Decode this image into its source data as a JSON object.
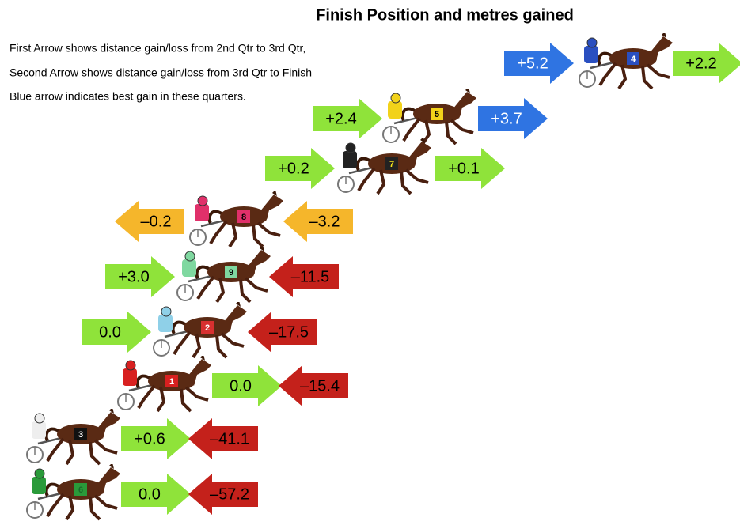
{
  "title": "Finish Position and metres gained",
  "notes": [
    "First Arrow shows distance gain/loss from 2nd Qtr to 3rd Qtr,",
    "Second Arrow shows distance gain/loss from 3rd Qtr to Finish",
    "Blue arrow indicates best gain in these quarters."
  ],
  "rows": [
    {
      "number": "4",
      "silks_color": "#2a4fc0",
      "cloth_color": "#2a4fc0",
      "number_color": "#ffffff",
      "arrows": [
        {
          "text": "+5.2",
          "direction": "right",
          "color": "#2f74e2",
          "text_color": "#ffffff"
        },
        {
          "text": "+2.2",
          "direction": "right",
          "color": "#8fe33a",
          "text_color": "#000000"
        }
      ]
    },
    {
      "number": "5",
      "silks_color": "#f2d21a",
      "cloth_color": "#f2d21a",
      "number_color": "#000000",
      "arrows": [
        {
          "text": "+2.4",
          "direction": "right",
          "color": "#8fe33a",
          "text_color": "#000000"
        },
        {
          "text": "+3.7",
          "direction": "right",
          "color": "#2f74e2",
          "text_color": "#ffffff"
        }
      ]
    },
    {
      "number": "7",
      "silks_color": "#222222",
      "cloth_color": "#222222",
      "number_color": "#f2e21a",
      "arrows": [
        {
          "text": "+0.2",
          "direction": "right",
          "color": "#8fe33a",
          "text_color": "#000000"
        },
        {
          "text": "+0.1",
          "direction": "right",
          "color": "#8fe33a",
          "text_color": "#000000"
        }
      ]
    },
    {
      "number": "8",
      "silks_color": "#e0306a",
      "cloth_color": "#e0306a",
      "number_color": "#000000",
      "arrows": [
        {
          "text": "–0.2",
          "direction": "left",
          "color": "#f5b62b",
          "text_color": "#000000"
        },
        {
          "text": "–3.2",
          "direction": "left",
          "color": "#f5b62b",
          "text_color": "#000000"
        }
      ]
    },
    {
      "number": "9",
      "silks_color": "#7fd8a0",
      "cloth_color": "#7fd8a0",
      "number_color": "#000000",
      "arrows": [
        {
          "text": "+3.0",
          "direction": "right",
          "color": "#8fe33a",
          "text_color": "#000000"
        },
        {
          "text": "–11.5",
          "direction": "left",
          "color": "#c4211b",
          "text_color": "#000000"
        }
      ]
    },
    {
      "number": "2",
      "silks_color": "#8fd0e8",
      "cloth_color": "#d83030",
      "number_color": "#ffffff",
      "arrows": [
        {
          "text": "0.0",
          "direction": "right",
          "color": "#8fe33a",
          "text_color": "#000000"
        },
        {
          "text": "–17.5",
          "direction": "left",
          "color": "#c4211b",
          "text_color": "#000000"
        }
      ]
    },
    {
      "number": "1",
      "silks_color": "#d82020",
      "cloth_color": "#d82020",
      "number_color": "#ffffff",
      "arrows": [
        {
          "text": "0.0",
          "direction": "right",
          "color": "#8fe33a",
          "text_color": "#000000"
        },
        {
          "text": "–15.4",
          "direction": "left",
          "color": "#c4211b",
          "text_color": "#000000"
        }
      ]
    },
    {
      "number": "3",
      "silks_color": "#eeeeee",
      "cloth_color": "#111111",
      "number_color": "#ffffff",
      "arrows": [
        {
          "text": "+0.6",
          "direction": "right",
          "color": "#8fe33a",
          "text_color": "#000000"
        },
        {
          "text": "–41.1",
          "direction": "left",
          "color": "#c4211b",
          "text_color": "#000000"
        }
      ]
    },
    {
      "number": "6",
      "silks_color": "#2a9a3a",
      "cloth_color": "#2a9a3a",
      "number_color": "#1a6a2a",
      "arrows": [
        {
          "text": "0.0",
          "direction": "right",
          "color": "#8fe33a",
          "text_color": "#000000"
        },
        {
          "text": "–57.2",
          "direction": "left",
          "color": "#c4211b",
          "text_color": "#000000"
        }
      ]
    }
  ]
}
